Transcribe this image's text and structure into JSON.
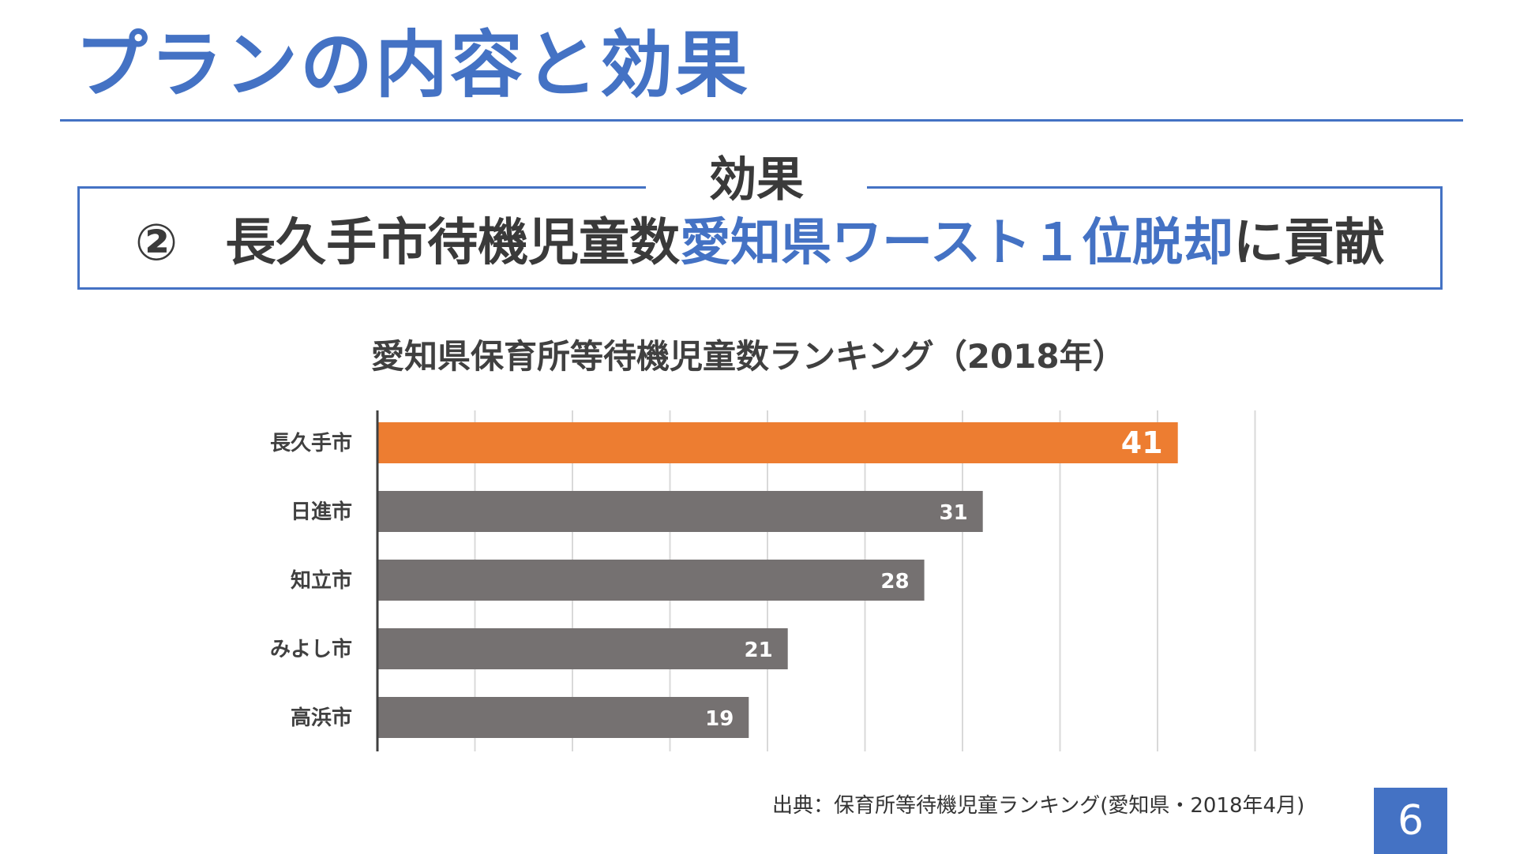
{
  "header": {
    "title": "プランの内容と効果"
  },
  "effect": {
    "heading": "効果",
    "number": "②",
    "text_before": "長久手市待機児童数",
    "text_highlight": "愛知県ワースト１位脱却",
    "text_after": "に貢献"
  },
  "chart_data": {
    "type": "bar",
    "orientation": "horizontal",
    "title": "愛知県保育所等待機児童数ランキング（2018年）",
    "categories": [
      "長久手市",
      "日進市",
      "知立市",
      "みよし市",
      "高浜市"
    ],
    "values": [
      41,
      31,
      28,
      21,
      19
    ],
    "xlim": [
      0,
      45
    ],
    "grid": true,
    "highlight_color": "#ed7d31",
    "bar_color": "#757171"
  },
  "footer": {
    "source": "出典：保育所等待機児童ランキング(愛知県・2018年4月)",
    "page_number": "6"
  }
}
